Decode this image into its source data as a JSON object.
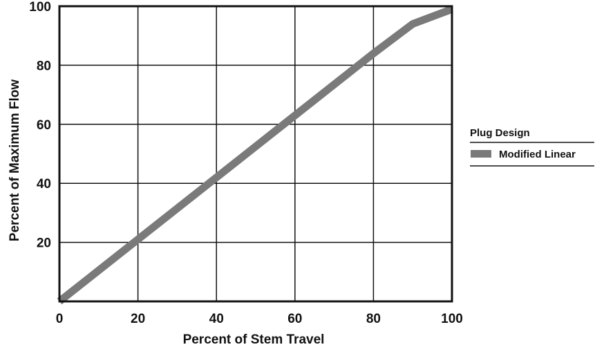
{
  "chart_data": {
    "type": "line",
    "xlabel": "Percent of Stem Travel",
    "ylabel": "Percent of Maximum Flow",
    "xlim": [
      0,
      100
    ],
    "ylim": [
      0,
      100
    ],
    "x_ticks": [
      0,
      20,
      40,
      60,
      80,
      100
    ],
    "y_ticks": [
      20,
      40,
      60,
      80,
      100
    ],
    "x_tick_labels": [
      "0",
      "20",
      "40",
      "60",
      "80",
      "100"
    ],
    "y_tick_labels": [
      "20",
      "40",
      "60",
      "80",
      "100"
    ],
    "grid": true,
    "legend": {
      "title": "Plug Design",
      "position": "right",
      "entries": [
        "Modified Linear"
      ]
    },
    "series": [
      {
        "name": "Modified Linear",
        "color": "#7a7a7b",
        "x": [
          0,
          20,
          40,
          60,
          80,
          87,
          90,
          100
        ],
        "y": [
          0,
          21,
          42,
          63,
          84,
          91,
          94,
          99
        ]
      }
    ]
  }
}
